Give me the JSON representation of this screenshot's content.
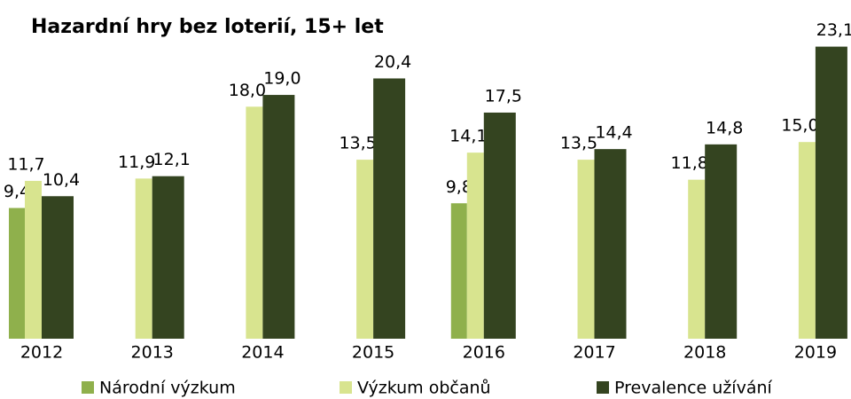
{
  "chart_data": {
    "type": "bar",
    "title": "Hazardní hry bez loterií, 15+ let",
    "categories": [
      "2012",
      "2013",
      "2014",
      "2015",
      "2016",
      "2017",
      "2018",
      "2019"
    ],
    "series": [
      {
        "name": "Národní výzkum",
        "color": "#8fb04c",
        "values": [
          9.4,
          null,
          null,
          null,
          9.8,
          null,
          null,
          null
        ],
        "value_labels": [
          "9,4",
          null,
          null,
          null,
          "9,8",
          null,
          null,
          null
        ]
      },
      {
        "name": "Výzkum občanů",
        "color": "#d8e48f",
        "values": [
          11.7,
          11.9,
          18.0,
          13.5,
          14.1,
          13.5,
          11.8,
          15.0
        ],
        "value_labels": [
          "11,7",
          "11,9",
          "18,0",
          "13,5",
          "14,1",
          "13,5",
          "11,8",
          "15,0"
        ]
      },
      {
        "name": "Prevalence užívání",
        "color": "#344420",
        "values": [
          10.4,
          12.1,
          19.0,
          20.4,
          17.5,
          14.4,
          14.8,
          23.1
        ],
        "value_labels": [
          "10,4",
          "12,1",
          "19,0",
          "20,4",
          "17,5",
          "14,4",
          "14,8",
          "23,1"
        ]
      }
    ],
    "ylim": [
      -1.7,
      24.5
    ],
    "legend": "bottom"
  }
}
